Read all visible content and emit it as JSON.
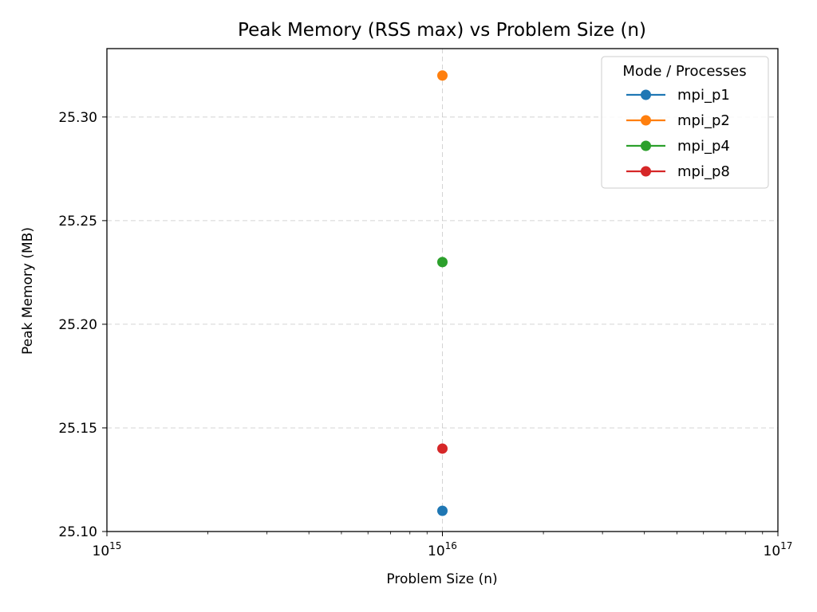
{
  "chart_data": {
    "type": "scatter",
    "title": "Peak Memory (RSS max) vs Problem Size (n)",
    "xlabel": "Problem Size (n)",
    "ylabel": "Peak Memory (MB)",
    "xscale": "log",
    "xlim": [
      1000000000000000.0,
      1e+17
    ],
    "ylim": [
      25.1,
      25.333
    ],
    "grid": true,
    "x_ticks": [
      {
        "value": 1000000000000000.0,
        "base": "10",
        "exp": "15"
      },
      {
        "value": 1e+16,
        "base": "10",
        "exp": "16"
      },
      {
        "value": 1e+17,
        "base": "10",
        "exp": "17"
      }
    ],
    "y_ticks": [
      {
        "value": 25.1,
        "label": "25.10"
      },
      {
        "value": 25.15,
        "label": "25.15"
      },
      {
        "value": 25.2,
        "label": "25.20"
      },
      {
        "value": 25.25,
        "label": "25.25"
      },
      {
        "value": 25.3,
        "label": "25.30"
      }
    ],
    "legend": {
      "title": "Mode / Processes",
      "placement": "upper-right"
    },
    "series": [
      {
        "name": "mpi_p1",
        "color": "#1f77b4",
        "x": [
          1e+16
        ],
        "y": [
          25.11
        ]
      },
      {
        "name": "mpi_p2",
        "color": "#ff7f0e",
        "x": [
          1e+16
        ],
        "y": [
          25.32
        ]
      },
      {
        "name": "mpi_p4",
        "color": "#2ca02c",
        "x": [
          1e+16
        ],
        "y": [
          25.23
        ]
      },
      {
        "name": "mpi_p8",
        "color": "#d62728",
        "x": [
          1e+16
        ],
        "y": [
          25.14
        ]
      }
    ]
  }
}
